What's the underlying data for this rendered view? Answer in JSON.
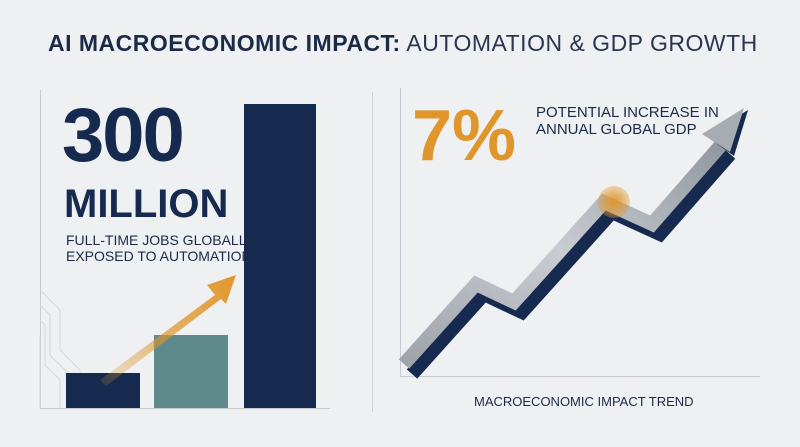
{
  "header": {
    "title_strong": "AI MACROECONOMIC IMPACT:",
    "title_light": " AUTOMATION & GDP GROWTH"
  },
  "jobs": {
    "number": "300",
    "unit": "MILLION",
    "description": "FULL-TIME JOBS GLOBALLY EXPOSED TO AUTOMATION"
  },
  "gdp": {
    "percent": "7%",
    "description": "POTENTIAL INCREASE IN ANNUAL GLOBAL GDP"
  },
  "trend": {
    "caption": "MACROECONOMIC IMPACT TREND"
  },
  "colors": {
    "navy": "#162a4f",
    "teal": "#5e8a8c",
    "orange": "#e0962b",
    "gray": "#b8bcc2",
    "background": "#eef0f2"
  }
}
